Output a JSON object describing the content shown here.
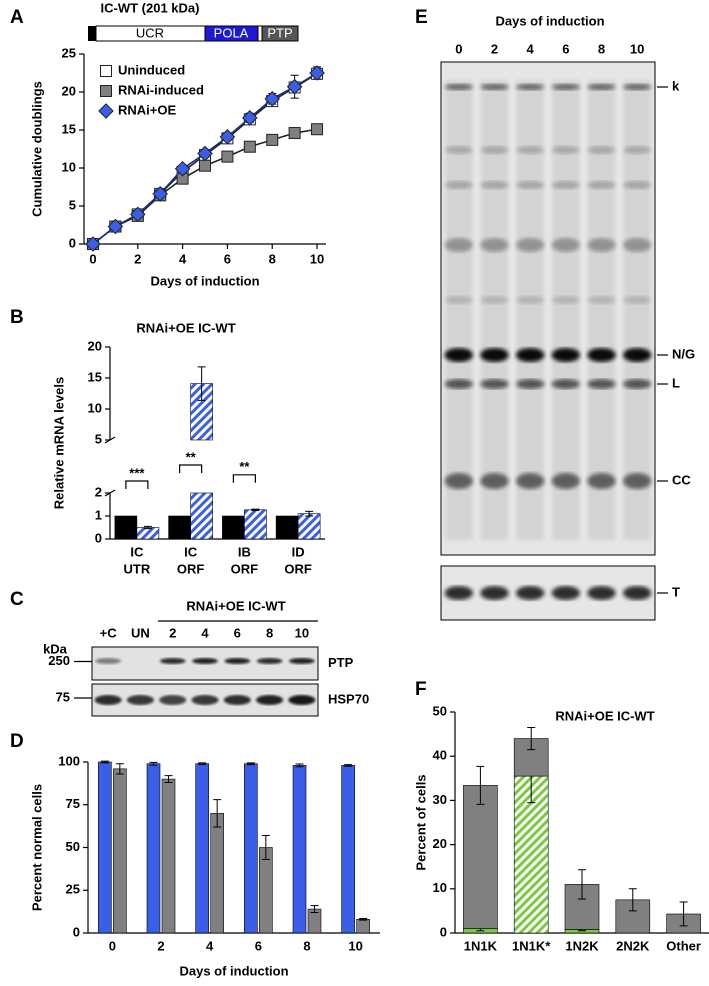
{
  "panel_labels": [
    "A",
    "B",
    "C",
    "D",
    "E",
    "F"
  ],
  "schematic": {
    "title": "IC-WT (201 kDa)",
    "domains": [
      "UCR",
      "POLA",
      "PTP"
    ]
  },
  "chart_data": [
    {
      "type": "line",
      "xlabel": "Days of induction",
      "ylabel": "Cumulative doublings",
      "x": [
        0,
        1,
        2,
        3,
        4,
        5,
        6,
        7,
        8,
        9,
        10
      ],
      "xlim": [
        -0.4,
        10.4
      ],
      "xticks": [
        0,
        2,
        4,
        6,
        8,
        10
      ],
      "ylim": [
        0,
        25
      ],
      "yticks": [
        0,
        5,
        10,
        15,
        20,
        25
      ],
      "legend": "upper left",
      "series": [
        {
          "name": "Uninduced",
          "color": "#ffffff",
          "marker": "square",
          "values": [
            0,
            2.3,
            3.9,
            6.6,
            9.5,
            11.7,
            13.9,
            16.4,
            18.8,
            20.6,
            22.4
          ]
        },
        {
          "name": "RNAi-induced",
          "color": "#808080",
          "marker": "square",
          "values": [
            0,
            2.3,
            3.7,
            6.4,
            8.6,
            10.3,
            11.5,
            12.8,
            13.7,
            14.6,
            15.1
          ]
        },
        {
          "name": "RNAi+OE",
          "color": "#3a5ee8",
          "marker": "diamond",
          "values": [
            0,
            2.3,
            3.9,
            6.6,
            9.9,
            11.9,
            14.1,
            16.6,
            19.1,
            20.7,
            22.5
          ],
          "errors": [
            0,
            0.3,
            0.3,
            0.3,
            0.5,
            0.5,
            0.5,
            0.6,
            0.7,
            1.5,
            0.8
          ]
        }
      ]
    },
    {
      "type": "bar",
      "title": "RNAi+OE IC-WT",
      "ylabel": "Relative mRNA levels",
      "categories": [
        [
          "IC",
          "UTR"
        ],
        [
          "IC",
          "ORF"
        ],
        [
          "IB",
          "ORF"
        ],
        [
          "ID",
          "ORF"
        ]
      ],
      "ylim": [
        0,
        20
      ],
      "axis_break": [
        2,
        5
      ],
      "yticks": [
        0,
        1,
        2,
        5,
        10,
        15,
        20
      ],
      "series": [
        {
          "color": "#000000",
          "values": [
            1,
            1,
            1,
            1
          ]
        },
        {
          "color": "#3a5ee8",
          "pattern": "hatch",
          "values": [
            0.5,
            14.1,
            1.27,
            1.1
          ],
          "errors": [
            0.05,
            2.7,
            0.03,
            0.1
          ]
        }
      ],
      "significance": [
        "***",
        "**",
        "**",
        null
      ]
    },
    {
      "type": "bar",
      "xlabel": "Days of induction",
      "ylabel": "Percent normal cells",
      "categories": [
        "0",
        "2",
        "4",
        "6",
        "8",
        "10"
      ],
      "ylim": [
        0,
        100
      ],
      "yticks": [
        0,
        25,
        50,
        75,
        100
      ],
      "series": [
        {
          "color": "#3a5ee8",
          "values": [
            100,
            99,
            99,
            99,
            98,
            98
          ],
          "errors": [
            0.5,
            0.8,
            0.5,
            0.5,
            0.8,
            0.5
          ]
        },
        {
          "color": "#808080",
          "values": [
            96,
            90,
            70,
            50,
            14,
            8
          ],
          "errors": [
            3,
            2,
            8,
            7,
            2,
            0.5
          ]
        }
      ]
    },
    {
      "type": "stacked_bar",
      "title": "RNAi+OE IC-WT",
      "ylabel": "Percent  of cells",
      "categories": [
        "1N1K",
        "1N1K*",
        "1N2K",
        "2N2K",
        "Other"
      ],
      "ylim": [
        0,
        50
      ],
      "yticks": [
        0,
        10,
        20,
        30,
        40,
        50
      ],
      "series": [
        {
          "color": "#7ac943",
          "patterns": [
            "solid",
            "hatch",
            "solid",
            "solid",
            "solid"
          ],
          "values": [
            1,
            35.5,
            0.8,
            0,
            0
          ],
          "errors": [
            0.5,
            6,
            0.3,
            0,
            0
          ]
        },
        {
          "color": "#808080",
          "values": [
            32.4,
            8.5,
            10.2,
            7.5,
            4.3
          ],
          "errors": [
            4.3,
            2.5,
            3.3,
            2.5,
            2.7
          ]
        }
      ]
    }
  ],
  "blot": {
    "title": "RNAi+OE IC-WT",
    "lanes": [
      "+C",
      "UN",
      "2",
      "4",
      "6",
      "8",
      "10"
    ],
    "unit": "kDa",
    "markers": [
      "250",
      "75"
    ],
    "labels": [
      "PTP",
      "HSP70"
    ]
  },
  "gel": {
    "title": "Days of induction",
    "lanes": [
      "0",
      "2",
      "4",
      "6",
      "8",
      "10"
    ],
    "bands": [
      "k",
      "N/G",
      "L",
      "CC",
      "T"
    ]
  }
}
